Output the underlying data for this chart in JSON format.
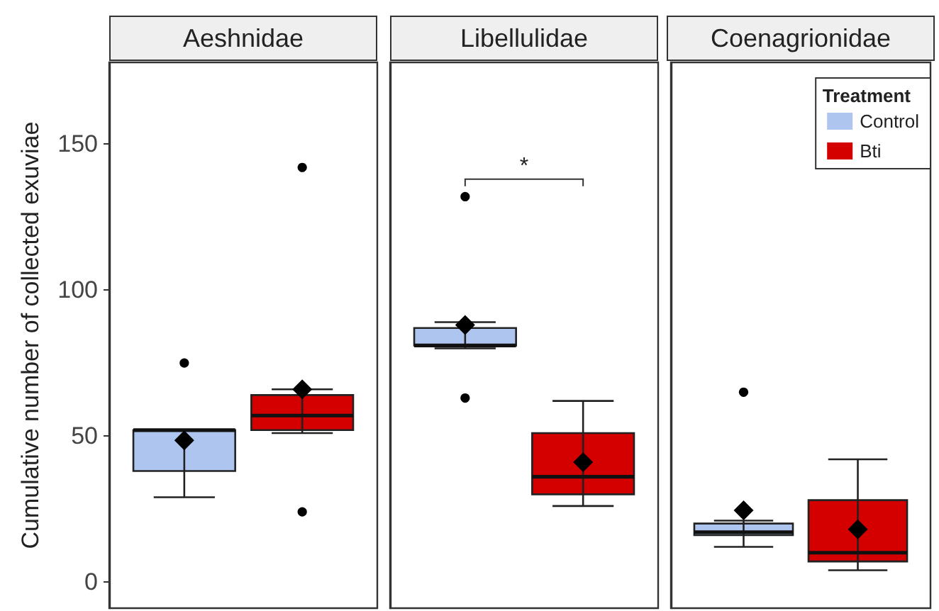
{
  "chart_data": {
    "type": "box",
    "categories": [
      "Aeshnidae",
      "Libellulidae",
      "Coenagrionidae"
    ],
    "ylabel": "Cumulative number of collected exuviae",
    "ylim": [
      -9,
      178
    ],
    "yticks": [
      0,
      50,
      100,
      150
    ],
    "marker": "diamond",
    "legend": "top right",
    "legend_title": "Treatment",
    "annotations": [
      "*"
    ],
    "series": [
      {
        "name": "Control",
        "color": "#aec6ef",
        "boxes": [
          {
            "low": 29,
            "q1": 38,
            "median": 52,
            "q3": 52,
            "high": 52,
            "mean": 48.5,
            "outliers": [
              75
            ]
          },
          {
            "low": 80,
            "q1": 81,
            "median": 81,
            "q3": 87,
            "high": 89,
            "mean": 88,
            "outliers": [
              132,
              63
            ]
          },
          {
            "low": 12,
            "q1": 16,
            "median": 17,
            "q3": 20,
            "high": 21,
            "mean": 24.5,
            "outliers": [
              65
            ]
          }
        ]
      },
      {
        "name": "Bti",
        "color": "#d40000",
        "boxes": [
          {
            "low": 51,
            "q1": 52,
            "median": 57,
            "q3": 64,
            "high": 66,
            "mean": 66,
            "outliers": [
              142,
              24
            ]
          },
          {
            "low": 26,
            "q1": 30,
            "median": 36,
            "q3": 51,
            "high": 62,
            "mean": 41
          },
          {
            "low": 4,
            "q1": 7,
            "median": 10,
            "q3": 28,
            "high": 42,
            "mean": 18
          }
        ]
      }
    ]
  }
}
